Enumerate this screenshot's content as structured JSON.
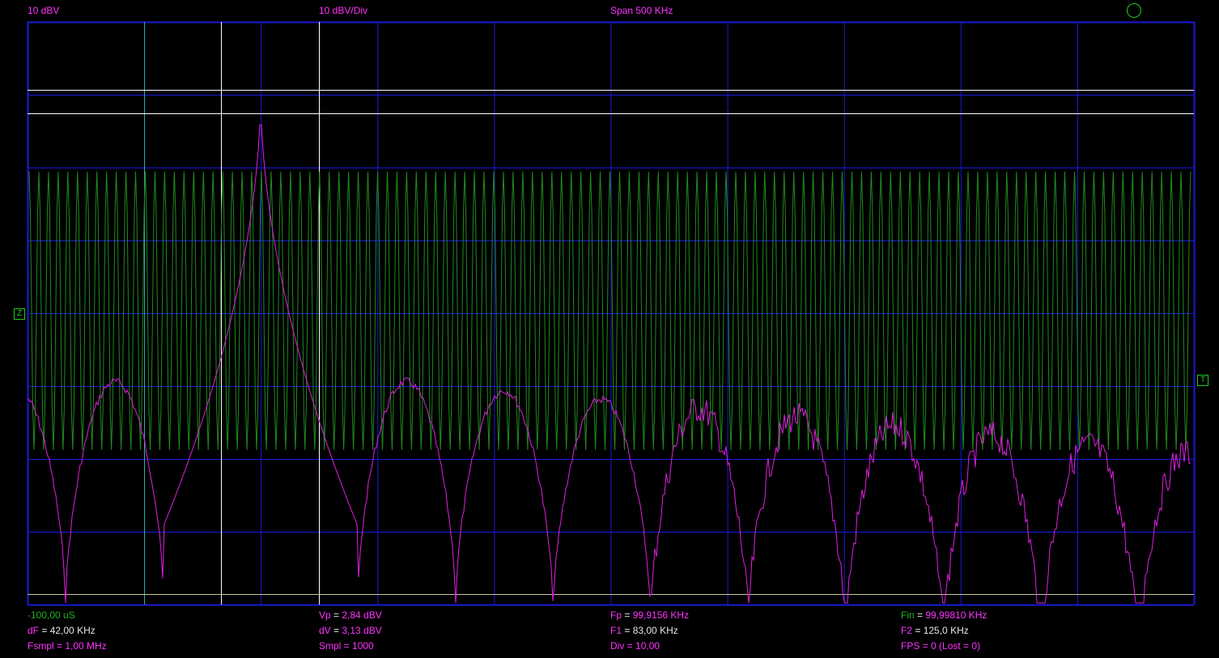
{
  "header": {
    "ref_level": "10 dBV",
    "scale": "10 dBV/Div",
    "span": "Span 500 KHz"
  },
  "markers": {
    "channel": "Z",
    "trigger": "T"
  },
  "readouts": {
    "time_offset": "-100,00 uS",
    "vp": "2,84 dBV",
    "fp": "99,9156 KHz",
    "fin": "99,99810 KHz",
    "df": "42,00 KHz",
    "dv": "3,13 dBV",
    "f1": "83,00 KHz",
    "f2": "125,0 KHz",
    "fsmpl": "1,00 MHz",
    "smpl": "1000",
    "div": "10,00",
    "fps": "0 (Lost = 0)"
  },
  "labels": {
    "vp": "Vp",
    "fp": "Fp",
    "fin": "Fin",
    "df": "dF",
    "dv": "dV",
    "f1": "F1",
    "f2": "F2",
    "fsmpl": "Fsmpl",
    "smpl": "Smpl",
    "div": "Div",
    "fps": "FPS"
  },
  "colors": {
    "grid": "#1a1ad9",
    "spectrum": "#e020e0",
    "time_signal": "#1e8c1e",
    "cursor": "#ffffff",
    "cursor_alt": "#2ab0a0",
    "label_magenta": "#ff33ff",
    "label_green": "#1fb21f"
  },
  "display": {
    "grid": true,
    "divisions_x": 10,
    "divisions_y": 8,
    "indicator_icon": "status-circle-icon"
  }
}
